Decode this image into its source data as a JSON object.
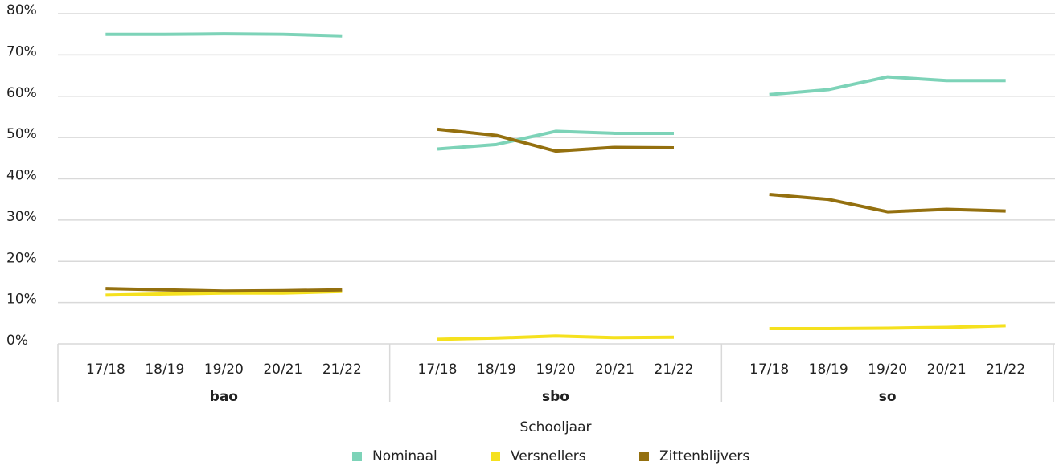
{
  "chart_data": {
    "type": "line",
    "x_label": "Schooljaar",
    "groups": [
      {
        "name": "bao",
        "categories": [
          "17/18",
          "18/19",
          "19/20",
          "20/21",
          "21/22"
        ]
      },
      {
        "name": "sbo",
        "categories": [
          "17/18",
          "18/19",
          "19/20",
          "20/21",
          "21/22"
        ]
      },
      {
        "name": "so",
        "categories": [
          "17/18",
          "18/19",
          "19/20",
          "20/21",
          "21/22"
        ]
      }
    ],
    "series": [
      {
        "name": "Nominaal",
        "color": "#7dd3b8",
        "values": [
          [
            75,
            75,
            75.1,
            75,
            74.6
          ],
          [
            47.2,
            48.3,
            51.5,
            51.0,
            51.0
          ],
          [
            60.4,
            61.6,
            64.7,
            63.8,
            63.8
          ]
        ]
      },
      {
        "name": "Versnellers",
        "color": "#f5e11e",
        "values": [
          [
            11.8,
            12.1,
            12.3,
            12.3,
            12.7
          ],
          [
            1.1,
            1.4,
            1.9,
            1.5,
            1.6
          ],
          [
            3.7,
            3.7,
            3.8,
            4.0,
            4.4
          ]
        ]
      },
      {
        "name": "Zittenblijvers",
        "color": "#94700f",
        "values": [
          [
            13.4,
            13.1,
            12.8,
            12.9,
            13.1
          ],
          [
            52,
            50.5,
            46.7,
            47.6,
            47.5
          ],
          [
            36.2,
            35,
            32,
            32.6,
            32.2
          ]
        ]
      }
    ],
    "ylim": [
      0,
      80
    ],
    "yticks": [
      {
        "value": 0,
        "label": "0%"
      },
      {
        "value": 10,
        "label": "10%"
      },
      {
        "value": 20,
        "label": "20%"
      },
      {
        "value": 30,
        "label": "30%"
      },
      {
        "value": 40,
        "label": "40%"
      },
      {
        "value": 50,
        "label": "50%"
      },
      {
        "value": 60,
        "label": "60%"
      },
      {
        "value": 70,
        "label": "70%"
      },
      {
        "value": 80,
        "label": "80%"
      }
    ],
    "grid": true
  }
}
